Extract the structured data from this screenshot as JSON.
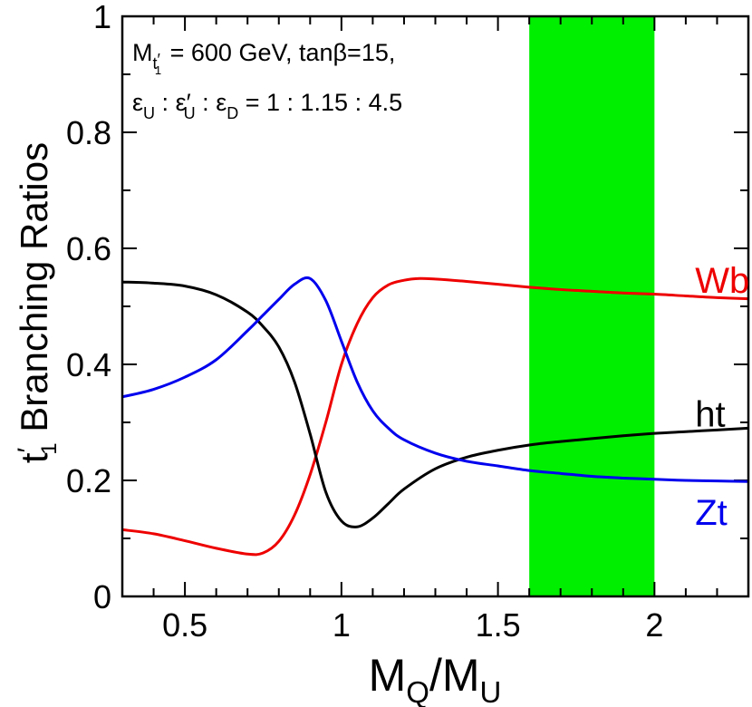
{
  "chart_data": {
    "type": "line",
    "xlabel": {
      "main": "M",
      "sub1": "Q",
      "slash": "/M",
      "sub2": "U"
    },
    "ylabel": {
      "t": "t",
      "prime": "′",
      "sub": "1",
      "rest": " Branching Ratios"
    },
    "xlim": [
      0.3,
      2.3
    ],
    "ylim": [
      0,
      1
    ],
    "x_ticks": [
      0.5,
      1,
      1.5,
      2
    ],
    "x_tick_labels": [
      "0.5",
      "1",
      "1.5",
      "2"
    ],
    "y_ticks": [
      0,
      0.2,
      0.4,
      0.6,
      0.8,
      1
    ],
    "y_tick_labels": [
      "0",
      "0.2",
      "0.4",
      "0.6",
      "0.8",
      "1"
    ],
    "band": {
      "x_from": 1.6,
      "x_to": 2.0,
      "color": "#00ee00"
    },
    "annotations": {
      "line1": {
        "m": "M",
        "sub": "t",
        "subprime": "′",
        "subsub": "1",
        "rest": " = 600 GeV,   tanβ=15,"
      },
      "line2": {
        "e1": "ε",
        "e1sub": "U",
        "sep1": " : ",
        "e2": "ε′",
        "e2sub": "U",
        "sep2": " : ",
        "e3": "ε",
        "e3sub": "D",
        "rest": " = 1 : 1.15 : 4.5"
      }
    },
    "series": [
      {
        "name": "Wb",
        "color": "#ee0000",
        "x": [
          0.3,
          0.4,
          0.5,
          0.6,
          0.7,
          0.75,
          0.8,
          0.85,
          0.9,
          0.95,
          1.0,
          1.05,
          1.1,
          1.15,
          1.2,
          1.25,
          1.3,
          1.4,
          1.5,
          1.6,
          1.7,
          1.8,
          1.9,
          2.0,
          2.1,
          2.2,
          2.3
        ],
        "y": [
          0.115,
          0.108,
          0.096,
          0.083,
          0.073,
          0.075,
          0.095,
          0.14,
          0.21,
          0.3,
          0.4,
          0.47,
          0.515,
          0.537,
          0.545,
          0.548,
          0.547,
          0.543,
          0.538,
          0.533,
          0.529,
          0.526,
          0.523,
          0.521,
          0.518,
          0.515,
          0.513
        ]
      },
      {
        "name": "ht",
        "color": "#000000",
        "x": [
          0.3,
          0.4,
          0.5,
          0.6,
          0.7,
          0.75,
          0.8,
          0.85,
          0.9,
          0.95,
          1.0,
          1.05,
          1.1,
          1.15,
          1.2,
          1.3,
          1.4,
          1.5,
          1.6,
          1.7,
          1.8,
          1.9,
          2.0,
          2.1,
          2.2,
          2.3
        ],
        "y": [
          0.542,
          0.54,
          0.535,
          0.52,
          0.49,
          0.465,
          0.43,
          0.37,
          0.28,
          0.18,
          0.13,
          0.12,
          0.135,
          0.16,
          0.185,
          0.22,
          0.24,
          0.252,
          0.261,
          0.267,
          0.272,
          0.277,
          0.281,
          0.284,
          0.287,
          0.29
        ]
      },
      {
        "name": "Zt",
        "color": "#0000ee",
        "x": [
          0.3,
          0.4,
          0.5,
          0.6,
          0.7,
          0.75,
          0.8,
          0.85,
          0.9,
          0.95,
          1.0,
          1.05,
          1.1,
          1.15,
          1.2,
          1.3,
          1.4,
          1.5,
          1.6,
          1.7,
          1.8,
          1.9,
          2.0,
          2.1,
          2.2,
          2.3
        ],
        "y": [
          0.344,
          0.357,
          0.378,
          0.408,
          0.458,
          0.485,
          0.512,
          0.538,
          0.548,
          0.51,
          0.44,
          0.37,
          0.32,
          0.29,
          0.27,
          0.247,
          0.233,
          0.225,
          0.217,
          0.212,
          0.207,
          0.204,
          0.202,
          0.2,
          0.199,
          0.198
        ]
      }
    ],
    "series_labels": [
      {
        "text": "Wb",
        "color": "#ee0000",
        "x": 2.13,
        "y": 0.545
      },
      {
        "text": "ht",
        "color": "#000000",
        "x": 2.13,
        "y": 0.315
      },
      {
        "text": "Zt",
        "color": "#0000ee",
        "x": 2.13,
        "y": 0.145
      }
    ]
  }
}
